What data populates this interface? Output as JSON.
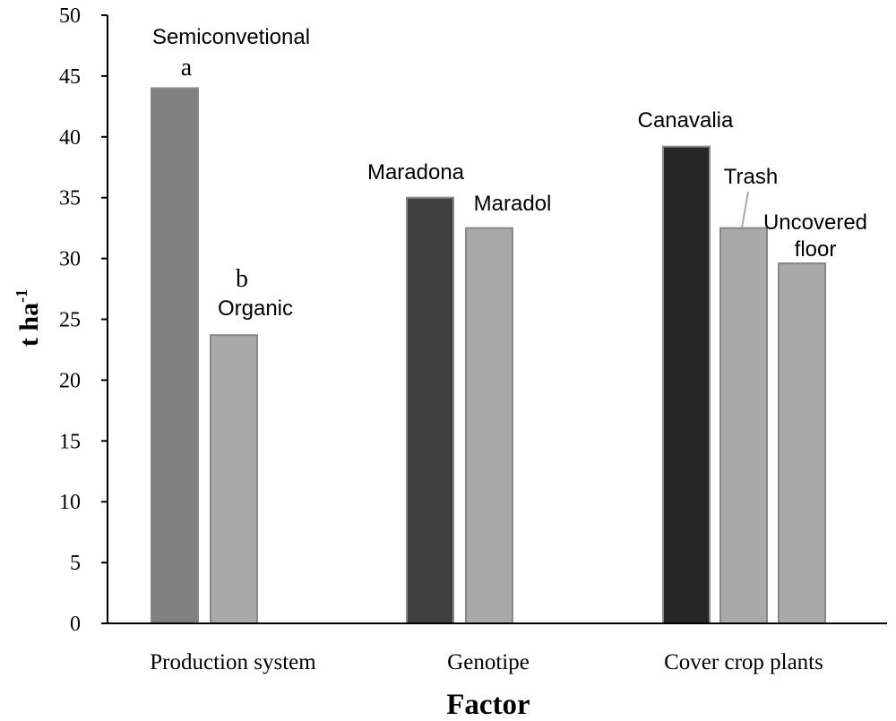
{
  "chart_data": {
    "type": "bar",
    "title": "",
    "xlabel": "Factor",
    "ylabel_main": "t ha",
    "ylabel_sup": "-1",
    "ylim": [
      0,
      50
    ],
    "yticks": [
      0,
      5,
      10,
      15,
      20,
      25,
      30,
      35,
      40,
      45,
      50
    ],
    "grid": false,
    "legend": "none",
    "groups": [
      {
        "name": "Production system",
        "bars": [
          {
            "label": "Semiconvetional",
            "value": 44,
            "letter": "a",
            "color": "#808080"
          },
          {
            "label": "Organic",
            "value": 23.7,
            "letter": "b",
            "color": "#a9a9a9"
          }
        ]
      },
      {
        "name": "Genotipe",
        "bars": [
          {
            "label": "Maradona",
            "value": 35,
            "letter": "",
            "color": "#404040"
          },
          {
            "label": "Maradol",
            "value": 32.5,
            "letter": "",
            "color": "#a9a9a9"
          }
        ]
      },
      {
        "name": "Cover crop plants",
        "bars": [
          {
            "label": "Canavalia",
            "value": 39.2,
            "letter": "",
            "color": "#262626"
          },
          {
            "label": "Trash",
            "value": 32.5,
            "letter": "",
            "color": "#a9a9a9"
          },
          {
            "label": "Uncovered floor",
            "value": 29.6,
            "letter": "",
            "color": "#a9a9a9"
          }
        ]
      }
    ]
  }
}
